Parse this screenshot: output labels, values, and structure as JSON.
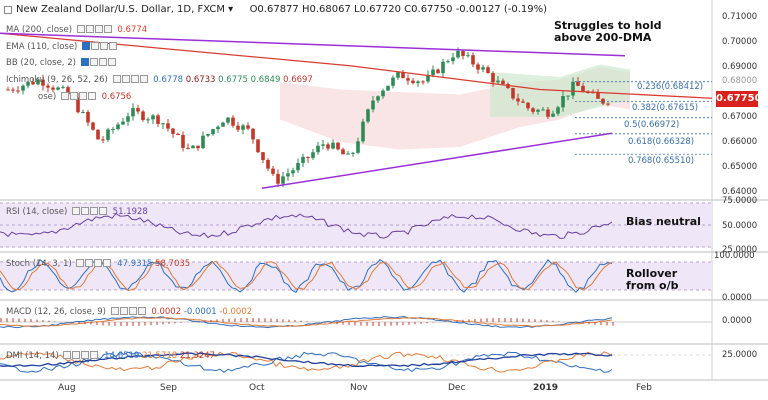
{
  "header": {
    "title": "New Zealand Dollar/U.S. Dollar, 1D, FXCM",
    "open": "O0.67877",
    "high": "H0.68067",
    "low": "L0.67720",
    "close": "C0.67750",
    "change": "-0.00127 (-0.19%)"
  },
  "indicators": {
    "ma": {
      "label": "MA (200, close)",
      "value": "0.6774"
    },
    "ema": {
      "label": "EMA (110, close)"
    },
    "bb": {
      "label": "BB (20, close, 2)"
    },
    "ichimoku": {
      "label": "Ichimoku (9, 26, 52, 26)",
      "values": [
        "0.6778",
        "0.6733",
        "0.6775",
        "0.6849",
        "0.6697"
      ]
    },
    "extra": {
      "label": "ose)",
      "value": "0.6756"
    },
    "rsi": {
      "label": "RSI (14, close)",
      "value": "51.1928"
    },
    "stoch": {
      "label": "Stoch (14, 3, 1)",
      "values": [
        "47.9315",
        "58.7035"
      ]
    },
    "macd": {
      "label": "MACD (12, 26, close, 9)",
      "values": [
        "0.0002",
        "-0.0001",
        "-0.0002"
      ]
    },
    "dmi": {
      "label": "DMI (14, 14)",
      "values": [
        "14.6519",
        "21.5718",
        "21.3247"
      ]
    }
  },
  "annotations": {
    "main": [
      "Struggles to hold",
      "above 200-DMA"
    ],
    "rsi": "Bias neutral",
    "stoch": [
      "Rollover",
      "from o/b"
    ]
  },
  "fib_levels": [
    {
      "label": "0.236(0.68412)",
      "value": 0.68412
    },
    {
      "label": "0.382(0.67615)",
      "value": 0.67615
    },
    {
      "label": "0.5(0.66972)",
      "value": 0.66972
    },
    {
      "label": "0.618(0.66328)",
      "value": 0.66328
    },
    {
      "label": "0.768(0.65510)",
      "value": 0.6551
    }
  ],
  "price_tag": "0.67750",
  "price_axis": [
    "0.71000",
    "0.70000",
    "0.69000",
    "0.68000",
    "0.67000",
    "0.66000",
    "0.65000",
    "0.64000"
  ],
  "rsi_axis": [
    "75.0000",
    "50.0000",
    "25.0000"
  ],
  "stoch_axis": [
    "100.0000",
    "0.0000"
  ],
  "macd_axis": [
    "0.0000"
  ],
  "dmi_axis": [
    "25.0000"
  ],
  "time_axis": [
    "Aug",
    "Sep",
    "Oct",
    "Nov",
    "Dec",
    "2019",
    "Feb"
  ],
  "colors": {
    "up": "#2e8b57",
    "down": "#c0392b",
    "ma200": "#d93b30",
    "trend": "#9b30d9",
    "fib": "#3a6ea5",
    "rsi": "#6a3fa0",
    "stoch_k": "#2f6fbf",
    "stoch_d": "#e07b39",
    "dmi_plus": "#2f6fbf",
    "dmi_minus": "#e07b39",
    "adx": "#1f3f9a"
  },
  "chart_data": {
    "type": "candlestick",
    "price_range": [
      0.64,
      0.71
    ],
    "ma200": [
      {
        "month": "Jul",
        "value": 0.7035
      },
      {
        "month": "Sep",
        "value": 0.6975
      },
      {
        "month": "Nov",
        "value": 0.6905
      },
      {
        "month": "Dec",
        "value": 0.6855
      },
      {
        "month": "2019",
        "value": 0.681
      },
      {
        "month": "Feb",
        "value": 0.6775
      }
    ],
    "trendlines": {
      "upper": [
        0.7035,
        0.6945
      ],
      "lower": [
        0.6415,
        0.6635
      ]
    }
  }
}
